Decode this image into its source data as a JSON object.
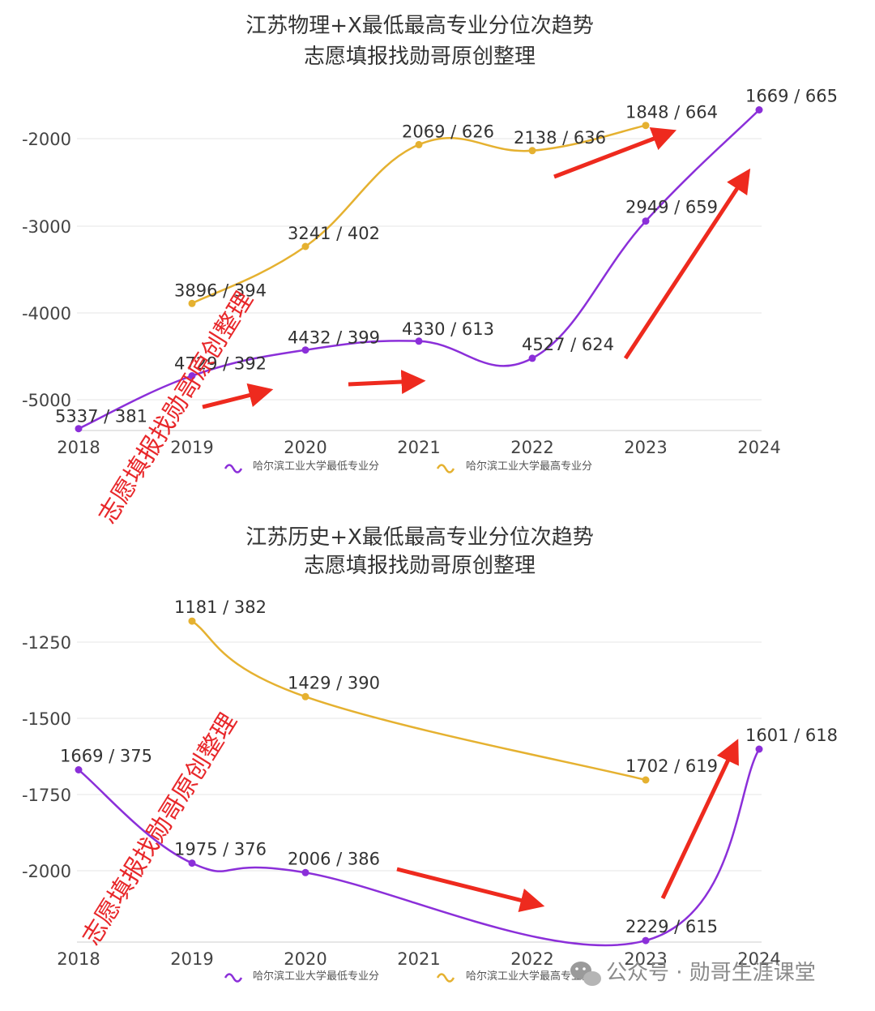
{
  "chart_data": [
    {
      "type": "line",
      "title": "江苏物理+X最低最高专业分位次趋势",
      "subtitle": "志愿填报找勋哥原创整理",
      "categories": [
        "2018",
        "2019",
        "2020",
        "2021",
        "2022",
        "2023",
        "2024"
      ],
      "yticks": [
        "-2000",
        "-3000",
        "-4000",
        "-5000"
      ],
      "ylim": [
        -5350,
        -1600
      ],
      "grid": true,
      "legend_position": "bottom",
      "series": [
        {
          "name": "哈尔滨工业大学最低专业分",
          "color": "#8b2fd9",
          "values": [
            -5337,
            -4729,
            -4432,
            -4330,
            -4527,
            -2949,
            -1669
          ],
          "labels": [
            "5337 / 381",
            "4729 / 392",
            "4432 / 399",
            "4330 / 613",
            "4527 / 624",
            "2949 / 659",
            "1669 / 665"
          ]
        },
        {
          "name": "哈尔滨工业大学最高专业分",
          "color": "#e5b130",
          "values": [
            null,
            -3896,
            -3241,
            -2069,
            -2138,
            -1848,
            null
          ],
          "labels": [
            "",
            "3896 / 394",
            "3241 / 402",
            "2069 / 626",
            "2138 / 636",
            "1848 / 664",
            ""
          ]
        }
      ],
      "watermark": "志愿填报找勋哥原创整理"
    },
    {
      "type": "line",
      "title": "江苏历史+X最低最高专业分位次趋势",
      "subtitle": "志愿填报找勋哥原创整理",
      "categories": [
        "2018",
        "2019",
        "2020",
        "2021",
        "2022",
        "2023",
        "2024"
      ],
      "yticks": [
        "-1250",
        "-1500",
        "-1750",
        "-2000"
      ],
      "ylim": [
        -2240,
        -1160
      ],
      "grid": true,
      "legend_position": "bottom",
      "series": [
        {
          "name": "哈尔滨工业大学最低专业分",
          "color": "#8b2fd9",
          "values": [
            -1669,
            -1975,
            -2006,
            null,
            null,
            -2229,
            -1601
          ],
          "labels": [
            "1669 / 375",
            "1975 / 376",
            "2006 / 386",
            "",
            "",
            "2229 / 615",
            "1601 / 618"
          ]
        },
        {
          "name": "哈尔滨工业大学最高专业分",
          "color": "#e5b130",
          "values": [
            null,
            -1181,
            -1429,
            null,
            null,
            -1702,
            null
          ],
          "labels": [
            "",
            "1181 / 382",
            "1429 / 390",
            "",
            "",
            "1702 / 619",
            ""
          ]
        }
      ],
      "watermark": "志愿填报找勋哥原创整理"
    }
  ],
  "footer": {
    "brand": "公众号 · 勋哥生涯课堂"
  }
}
